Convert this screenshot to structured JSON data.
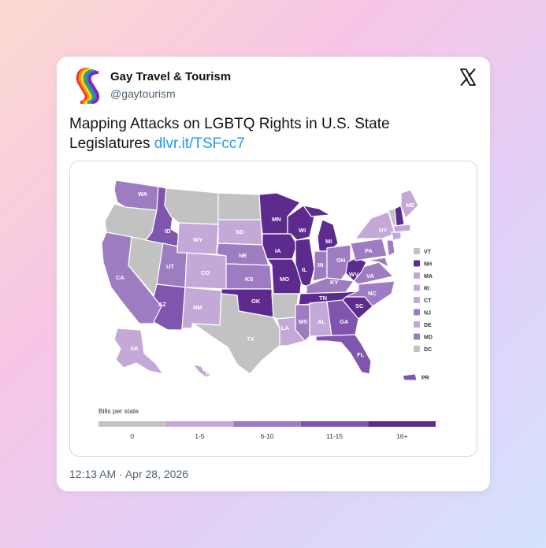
{
  "tweet": {
    "author_name": "Gay Travel & Tourism",
    "author_handle": "@gaytourism",
    "text_before_link": "Mapping Attacks on LGBTQ Rights in U.S. State Legislatures ",
    "link_text": "dlvr.it/TSFcc7",
    "timestamp": "12:13 AM · Apr 28, 2026"
  },
  "icons": {
    "avatar": "rainbow-ribbon-logo",
    "brand": "x-logo"
  },
  "colors": {
    "bin_0": "#c2c2c2",
    "bin_1_5": "#c4a9d8",
    "bin_6_10": "#9d7cc2",
    "bin_11_15": "#7f55ad",
    "bin_16_plus": "#5d2a8e",
    "link": "#1d9bf0"
  },
  "map": {
    "state_labels": [
      "WA",
      "ID",
      "MN",
      "WI",
      "MI",
      "ME",
      "NY",
      "WY",
      "SD",
      "IA",
      "PA",
      "NE",
      "IN",
      "OH",
      "CA",
      "UT",
      "CO",
      "KS",
      "IL",
      "KY",
      "MO",
      "WV",
      "VA",
      "TN",
      "NC",
      "OK",
      "AZ",
      "NM",
      "SC",
      "MS",
      "AL",
      "GA",
      "LA",
      "TX",
      "FL",
      "AK",
      "HI"
    ],
    "east_legend": [
      {
        "abbr": "VT",
        "bin": "bin_0"
      },
      {
        "abbr": "NH",
        "bin": "bin_16_plus"
      },
      {
        "abbr": "MA",
        "bin": "bin_1_5"
      },
      {
        "abbr": "RI",
        "bin": "bin_1_5"
      },
      {
        "abbr": "CT",
        "bin": "bin_1_5"
      },
      {
        "abbr": "NJ",
        "bin": "bin_6_10"
      },
      {
        "abbr": "DE",
        "bin": "bin_1_5"
      },
      {
        "abbr": "MD",
        "bin": "bin_6_10"
      },
      {
        "abbr": "DC",
        "bin": "bin_0"
      }
    ],
    "pr_label": "PR",
    "scale_title": "Bills per state",
    "scale_bins": [
      "0",
      "1-5",
      "6-10",
      "11-15",
      "16+"
    ]
  }
}
